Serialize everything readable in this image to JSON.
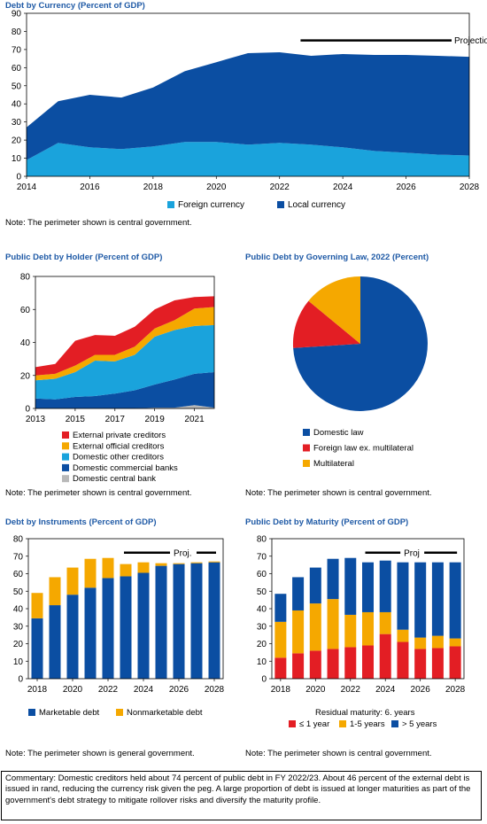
{
  "panels": {
    "currency": {
      "title": "Debt by Currency (Percent of GDP)",
      "note": "Note: The perimeter shown is central government."
    },
    "holder": {
      "title": "Public Debt by Holder (Percent of GDP)",
      "note": "Note: The perimeter shown is central government."
    },
    "law": {
      "title": "Public Debt by Governing Law, 2022 (Percent)",
      "note": "Note: The perimeter shown is central government."
    },
    "instruments": {
      "title": "Debt by Instruments (Percent of GDP)",
      "note": "Note: The perimeter shown is general government."
    },
    "maturity": {
      "title": "Public Debt by Maturity (Percent of GDP)",
      "note": "Note: The perimeter shown is central government."
    }
  },
  "commentary": "Commentary: Domestic creditors held about 74 percent of public debt in FY 2022/23. About 46 percent of the external debt is issued in rand, reducing the currency risk given the peg. A large proportion of debt is issued at longer maturities as part of the government's debt strategy to mitigate rollover risks and diversify the maturity profile.",
  "colors": {
    "dark_blue": "#0B4EA2",
    "light_blue": "#1AA3DC",
    "orange": "#F5A800",
    "red": "#E31E24",
    "gray": "#B9B9B9",
    "title": "#1F5AA6"
  },
  "chart_data": [
    {
      "id": "currency",
      "type": "area",
      "stacked": true,
      "title": "Debt by Currency (Percent of GDP)",
      "x": [
        2014,
        2015,
        2016,
        2017,
        2018,
        2019,
        2020,
        2021,
        2022,
        2023,
        2024,
        2025,
        2026,
        2027,
        2028
      ],
      "x_ticks": [
        2014,
        2016,
        2018,
        2020,
        2022,
        2024,
        2026,
        2028
      ],
      "ylim": [
        0,
        90
      ],
      "y_ticks": [
        0,
        10,
        20,
        30,
        40,
        50,
        60,
        70,
        80,
        90
      ],
      "series": [
        {
          "name": "Foreign currency",
          "color": "#1AA3DC",
          "values": [
            9,
            18.5,
            16,
            15,
            16.5,
            19,
            19,
            17.5,
            18.5,
            17.5,
            16,
            14,
            13,
            12,
            11.5
          ]
        },
        {
          "name": "Local currency",
          "color": "#0B4EA2",
          "values": [
            18,
            23,
            29,
            28.5,
            32.5,
            39,
            44,
            50.5,
            50,
            49,
            51.5,
            53,
            54,
            54.5,
            54.5
          ]
        }
      ],
      "annotation": {
        "label": "Projection",
        "from": 2023,
        "to": 2028
      },
      "legend_position": "bottom",
      "grid": false
    },
    {
      "id": "holder",
      "type": "area",
      "stacked": true,
      "title": "Public Debt by Holder (Percent of GDP)",
      "x": [
        2013,
        2014,
        2015,
        2016,
        2017,
        2018,
        2019,
        2020,
        2021,
        2022
      ],
      "x_ticks": [
        2013,
        2015,
        2017,
        2019,
        2021
      ],
      "ylim": [
        0,
        80
      ],
      "y_ticks": [
        0,
        20,
        40,
        60,
        80
      ],
      "series": [
        {
          "name": "Domestic central bank",
          "color": "#B9B9B9",
          "values": [
            0,
            0,
            0,
            0,
            0,
            0,
            0.5,
            0.5,
            2,
            0.5
          ]
        },
        {
          "name": "Domestic commercial banks",
          "color": "#0B4EA2",
          "values": [
            6,
            5.5,
            7,
            7.5,
            9,
            11,
            14,
            17,
            19,
            21.5
          ]
        },
        {
          "name": "Domestic other creditors",
          "color": "#1AA3DC",
          "values": [
            11,
            12.5,
            15,
            21.5,
            19.5,
            21.5,
            29,
            30,
            29,
            28.5
          ]
        },
        {
          "name": "External official creditors",
          "color": "#F5A800",
          "values": [
            3,
            3,
            4,
            3.5,
            4,
            5,
            5,
            6,
            10.5,
            11
          ]
        },
        {
          "name": "External private creditors",
          "color": "#E31E24",
          "values": [
            5,
            6,
            15,
            12,
            11.5,
            12,
            11.5,
            12,
            7,
            6.5
          ]
        }
      ],
      "legend_position": "bottom",
      "grid": false
    },
    {
      "id": "law",
      "type": "pie",
      "title": "Public Debt by Governing Law, 2022 (Percent)",
      "labels": [
        "Domestic law",
        "Foreign law ex. multilateral",
        "Multilateral"
      ],
      "values": [
        74,
        12,
        14
      ],
      "colors": [
        "#0B4EA2",
        "#E31E24",
        "#F5A800"
      ],
      "legend_position": "bottom"
    },
    {
      "id": "instruments",
      "type": "bar",
      "stacked": true,
      "title": "Debt by Instruments (Percent of GDP)",
      "categories": [
        2018,
        2019,
        2020,
        2021,
        2022,
        2023,
        2024,
        2025,
        2026,
        2027,
        2028
      ],
      "x_ticks": [
        2018,
        2020,
        2022,
        2024,
        2026,
        2028
      ],
      "ylim": [
        0,
        80
      ],
      "y_ticks": [
        0,
        10,
        20,
        30,
        40,
        50,
        60,
        70,
        80
      ],
      "series": [
        {
          "name": "Marketable debt",
          "color": "#0B4EA2",
          "values": [
            34.5,
            42,
            48,
            52,
            57.5,
            58.5,
            60.5,
            64.5,
            65.5,
            66,
            66.5
          ]
        },
        {
          "name": "Nonmarketable debt",
          "color": "#F5A800",
          "values": [
            14.5,
            16,
            15.5,
            16.5,
            11.5,
            7,
            6,
            1.5,
            0.5,
            0.5,
            0.5
          ]
        }
      ],
      "annotation": {
        "label": "Proj.",
        "from": 2023,
        "to": 2028
      },
      "legend_position": "bottom",
      "grid": false
    },
    {
      "id": "maturity",
      "type": "bar",
      "stacked": true,
      "title": "Public Debt by Maturity (Percent of GDP)",
      "categories": [
        2018,
        2019,
        2020,
        2021,
        2022,
        2023,
        2024,
        2025,
        2026,
        2027,
        2028
      ],
      "x_ticks": [
        2018,
        2020,
        2022,
        2024,
        2026,
        2028
      ],
      "ylim": [
        0,
        80
      ],
      "y_ticks": [
        0,
        10,
        20,
        30,
        40,
        50,
        60,
        70,
        80
      ],
      "series": [
        {
          "name": "≤ 1 year",
          "color": "#E31E24",
          "values": [
            12,
            14.5,
            16,
            17,
            18,
            19,
            25.5,
            21,
            17,
            17.5,
            18.5
          ]
        },
        {
          "name": "1-5 years",
          "color": "#F5A800",
          "values": [
            20.5,
            24.5,
            27,
            28.5,
            18.5,
            19,
            12.5,
            7,
            6.5,
            7,
            4.5
          ]
        },
        {
          "name": "> 5 years",
          "color": "#0B4EA2",
          "values": [
            16,
            19,
            20.5,
            23,
            32.5,
            28.5,
            29.5,
            38.5,
            43,
            42,
            43.5
          ]
        }
      ],
      "annotation": {
        "label": "Proj",
        "from": 2023,
        "to": 2028
      },
      "legend_title": "Residual maturity: 6. years",
      "legend_position": "bottom",
      "grid": false
    }
  ]
}
